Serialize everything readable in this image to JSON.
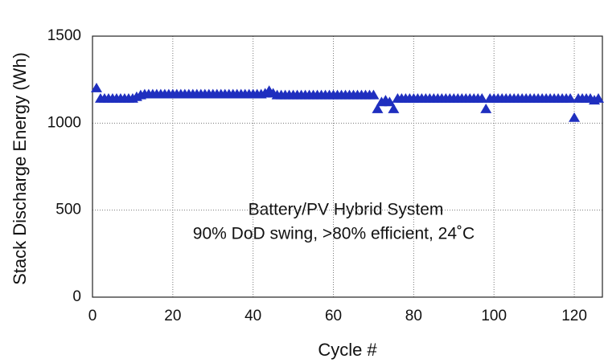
{
  "chart_data": {
    "type": "scatter",
    "x_label": "Cycle #",
    "y_label": "Stack Discharge Energy (Wh)",
    "annotations": [
      "Battery/PV Hybrid System",
      "90% DoD swing, >80% efficient, 24˚C"
    ],
    "color": "#1f2fbf",
    "grid": true,
    "xlim": [
      0,
      127
    ],
    "ylim": [
      0,
      1500
    ],
    "xticks": [
      0,
      20,
      40,
      60,
      80,
      100,
      120
    ],
    "yticks": [
      0,
      500,
      1000,
      1500
    ],
    "x": [
      1,
      2,
      3,
      4,
      5,
      6,
      7,
      8,
      9,
      10,
      11,
      12,
      13,
      14,
      15,
      16,
      17,
      18,
      19,
      20,
      21,
      22,
      23,
      24,
      25,
      26,
      27,
      28,
      29,
      30,
      31,
      32,
      33,
      34,
      35,
      36,
      37,
      38,
      39,
      40,
      41,
      42,
      43,
      44,
      45,
      46,
      47,
      48,
      49,
      50,
      51,
      52,
      53,
      54,
      55,
      56,
      57,
      58,
      59,
      60,
      61,
      62,
      63,
      64,
      65,
      66,
      67,
      68,
      69,
      70,
      71,
      72,
      73,
      74,
      75,
      76,
      77,
      78,
      79,
      80,
      81,
      82,
      83,
      84,
      85,
      86,
      87,
      88,
      89,
      90,
      91,
      92,
      93,
      94,
      95,
      96,
      97,
      98,
      99,
      100,
      101,
      102,
      103,
      104,
      105,
      106,
      107,
      108,
      109,
      110,
      111,
      112,
      113,
      114,
      115,
      116,
      117,
      118,
      119,
      120,
      121,
      122,
      123,
      124,
      125,
      126
    ],
    "values": [
      1200,
      1140,
      1140,
      1140,
      1140,
      1140,
      1140,
      1140,
      1140,
      1140,
      1150,
      1160,
      1165,
      1165,
      1165,
      1165,
      1165,
      1165,
      1165,
      1165,
      1165,
      1165,
      1165,
      1165,
      1165,
      1165,
      1165,
      1165,
      1165,
      1165,
      1165,
      1165,
      1165,
      1165,
      1165,
      1165,
      1165,
      1165,
      1165,
      1165,
      1165,
      1165,
      1170,
      1185,
      1170,
      1160,
      1160,
      1160,
      1160,
      1160,
      1160,
      1160,
      1160,
      1160,
      1160,
      1160,
      1160,
      1160,
      1160,
      1160,
      1160,
      1160,
      1160,
      1160,
      1160,
      1160,
      1160,
      1160,
      1160,
      1160,
      1080,
      1120,
      1130,
      1120,
      1080,
      1140,
      1140,
      1140,
      1140,
      1140,
      1140,
      1140,
      1140,
      1140,
      1140,
      1140,
      1140,
      1140,
      1140,
      1140,
      1140,
      1140,
      1140,
      1140,
      1140,
      1140,
      1140,
      1080,
      1140,
      1140,
      1140,
      1140,
      1140,
      1140,
      1140,
      1140,
      1140,
      1140,
      1140,
      1140,
      1140,
      1140,
      1140,
      1140,
      1140,
      1140,
      1140,
      1140,
      1140,
      1030,
      1140,
      1140,
      1140,
      1140,
      1130,
      1140
    ]
  }
}
